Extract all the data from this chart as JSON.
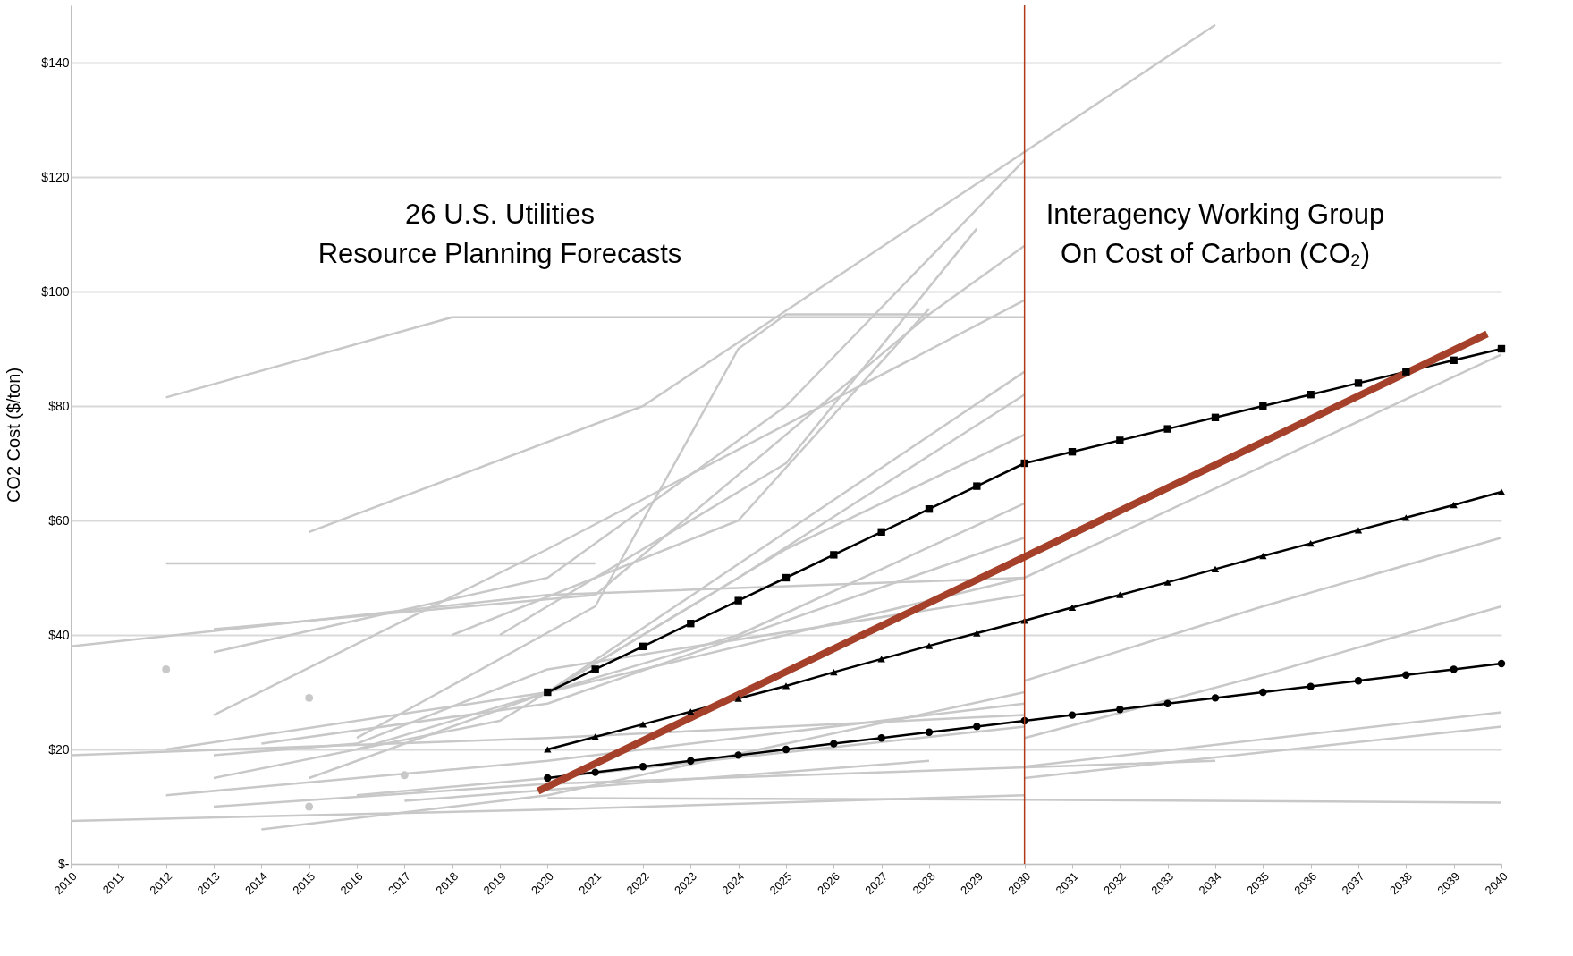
{
  "chart_data": {
    "type": "line",
    "ylabel": "CO2 Cost ($/ton)",
    "xlim": [
      2010,
      2040
    ],
    "xticks": [
      2010,
      2011,
      2012,
      2013,
      2014,
      2015,
      2016,
      2017,
      2018,
      2019,
      2020,
      2021,
      2022,
      2023,
      2024,
      2025,
      2026,
      2027,
      2028,
      2029,
      2030,
      2031,
      2032,
      2033,
      2034,
      2035,
      2036,
      2037,
      2038,
      2039,
      2040
    ],
    "ylim": [
      0,
      150
    ],
    "yticks": [
      {
        "value": 0,
        "label": "$-"
      },
      {
        "value": 20,
        "label": "$20"
      },
      {
        "value": 40,
        "label": "$40"
      },
      {
        "value": 60,
        "label": "$60"
      },
      {
        "value": 80,
        "label": "$80"
      },
      {
        "value": 100,
        "label": "$100"
      },
      {
        "value": 120,
        "label": "$120"
      },
      {
        "value": 140,
        "label": "$140"
      }
    ],
    "grid": "y",
    "marker": "none",
    "line_style": "solid",
    "annotations": [
      "26 U.S. Utilities\nResource Planning Forecasts",
      "Interagency Working Group\nOn Cost of Carbon (CO₂)"
    ],
    "ref_lines": [
      {
        "axis": "x",
        "value": 2030,
        "color": "#b03a1a"
      }
    ],
    "series": [
      {
        "color": "#c8c8c8",
        "x": [
          2012,
          2018,
          2030
        ],
        "values": [
          81.5,
          95.5,
          95.5
        ]
      },
      {
        "color": "#c8c8c8",
        "x": [
          2012,
          2021
        ],
        "values": [
          52.5,
          52.5
        ]
      },
      {
        "color": "#c8c8c8",
        "x": [
          2010,
          2020,
          2030
        ],
        "values": [
          38,
          47,
          50
        ]
      },
      {
        "color": "#c8c8c8",
        "x": [
          2010,
          2020,
          2030
        ],
        "values": [
          19,
          22,
          26
        ]
      },
      {
        "color": "#c8c8c8",
        "x": [
          2010,
          2020,
          2030
        ],
        "values": [
          7.5,
          9.5,
          12
        ]
      },
      {
        "color": "#c8c8c8",
        "x": [
          2015,
          2022,
          2034
        ],
        "values": [
          58,
          80,
          146.6
        ]
      },
      {
        "color": "#c8c8c8",
        "x": [
          2013,
          2020,
          2025,
          2030
        ],
        "values": [
          37,
          50,
          80,
          123
        ]
      },
      {
        "color": "#c8c8c8",
        "x": [
          2013,
          2021,
          2028,
          2030
        ],
        "values": [
          41,
          47,
          96,
          108
        ]
      },
      {
        "color": "#c8c8c8",
        "x": [
          2013,
          2020,
          2030
        ],
        "values": [
          26,
          55,
          98.5
        ]
      },
      {
        "color": "#c8c8c8",
        "x": [
          2012,
          2020,
          2030
        ],
        "values": [
          20,
          30,
          86
        ]
      },
      {
        "color": "#c8c8c8",
        "x": [
          2013,
          2019,
          2024,
          2030
        ],
        "values": [
          15,
          25,
          50,
          82
        ]
      },
      {
        "color": "#c8c8c8",
        "x": [
          2015,
          2020,
          2025,
          2030
        ],
        "values": [
          15,
          30,
          55,
          75
        ]
      },
      {
        "color": "#c8c8c8",
        "x": [
          2014,
          2020,
          2030
        ],
        "values": [
          6,
          12,
          30
        ]
      },
      {
        "color": "#c8c8c8",
        "x": [
          2016,
          2020,
          2030
        ],
        "values": [
          12,
          15,
          24
        ]
      },
      {
        "color": "#c8c8c8",
        "x": [
          2020,
          2030,
          2040
        ],
        "values": [
          11.5,
          11.2,
          10.7
        ]
      },
      {
        "color": "#c8c8c8",
        "x": [
          2020,
          2030,
          2040
        ],
        "values": [
          30,
          50,
          89
        ]
      },
      {
        "color": "#c8c8c8",
        "x": [
          2030,
          2035,
          2040
        ],
        "values": [
          32,
          45,
          57
        ]
      },
      {
        "color": "#c8c8c8",
        "x": [
          2030,
          2035,
          2040
        ],
        "values": [
          22,
          33,
          45
        ]
      },
      {
        "color": "#c8c8c8",
        "x": [
          2030,
          2040
        ],
        "values": [
          17,
          26.5
        ]
      },
      {
        "color": "#c8c8c8",
        "x": [
          2030,
          2040
        ],
        "values": [
          15,
          24
        ]
      },
      {
        "color": "#c8c8c8",
        "x": [
          2019,
          2025,
          2029
        ],
        "values": [
          40,
          70,
          111
        ]
      },
      {
        "color": "#c8c8c8",
        "x": [
          2018,
          2024,
          2028
        ],
        "values": [
          40,
          60,
          97
        ]
      },
      {
        "color": "#c8c8c8",
        "x": [
          2016,
          2021,
          2024,
          2025,
          2028
        ],
        "values": [
          22,
          45,
          90,
          96,
          96
        ]
      },
      {
        "color": "#c8c8c8",
        "x": [
          2013,
          2020,
          2034
        ],
        "values": [
          10,
          14,
          18
        ]
      },
      {
        "color": "#c8c8c8",
        "x": [
          2017,
          2028
        ],
        "values": [
          11,
          18
        ]
      },
      {
        "color": "#c8c8c8",
        "x": [
          2013,
          2016,
          2020,
          2030
        ],
        "values": [
          19,
          21,
          34,
          47
        ]
      },
      {
        "color": "#c8c8c8",
        "x": [
          2014,
          2020,
          2030
        ],
        "values": [
          21,
          28,
          57
        ]
      },
      {
        "color": "#c8c8c8",
        "x": [
          2012,
          2020,
          2030
        ],
        "values": [
          12,
          18,
          28
        ]
      },
      {
        "color": "#c8c8c8",
        "x": [
          2016,
          2024,
          2030
        ],
        "values": [
          20,
          40,
          63
        ]
      },
      {
        "type": "scatter",
        "marker": "circle",
        "color": "#c8c8c8",
        "x": [
          2012,
          2015,
          2015,
          2017
        ],
        "values": [
          34,
          29,
          10,
          15.5
        ]
      },
      {
        "marker": "square",
        "color": "#000000",
        "x": [
          2020,
          2021,
          2022,
          2023,
          2024,
          2025,
          2026,
          2027,
          2028,
          2029,
          2030,
          2031,
          2032,
          2033,
          2034,
          2035,
          2036,
          2037,
          2038,
          2039,
          2040
        ],
        "values": [
          30,
          34,
          38,
          42,
          46,
          50,
          54,
          58,
          62,
          66,
          70,
          72,
          74,
          76,
          78,
          80,
          82,
          84,
          86,
          88,
          90
        ]
      },
      {
        "marker": "triangle",
        "color": "#000000",
        "x": [
          2020,
          2021,
          2022,
          2023,
          2024,
          2025,
          2026,
          2027,
          2028,
          2029,
          2030,
          2031,
          2032,
          2033,
          2034,
          2035,
          2036,
          2037,
          2038,
          2039,
          2040
        ],
        "values": [
          20,
          22.2,
          24.4,
          26.6,
          28.9,
          31.1,
          33.5,
          35.8,
          38.1,
          40.3,
          42.5,
          44.8,
          47,
          49.2,
          51.5,
          53.8,
          56,
          58.3,
          60.5,
          62.7,
          65
        ]
      },
      {
        "marker": "circle",
        "color": "#000000",
        "x": [
          2020,
          2021,
          2022,
          2023,
          2024,
          2025,
          2026,
          2027,
          2028,
          2029,
          2030,
          2031,
          2032,
          2033,
          2034,
          2035,
          2036,
          2037,
          2038,
          2039,
          2040
        ],
        "values": [
          15,
          16,
          17,
          18,
          19,
          20,
          21,
          22,
          23,
          24,
          25,
          26,
          27,
          28,
          29,
          30,
          31,
          32,
          33,
          34,
          35
        ]
      },
      {
        "color": "#a5402a",
        "x": [
          2019.8,
          2039.7
        ],
        "values": [
          12.7,
          92.6
        ]
      }
    ]
  }
}
